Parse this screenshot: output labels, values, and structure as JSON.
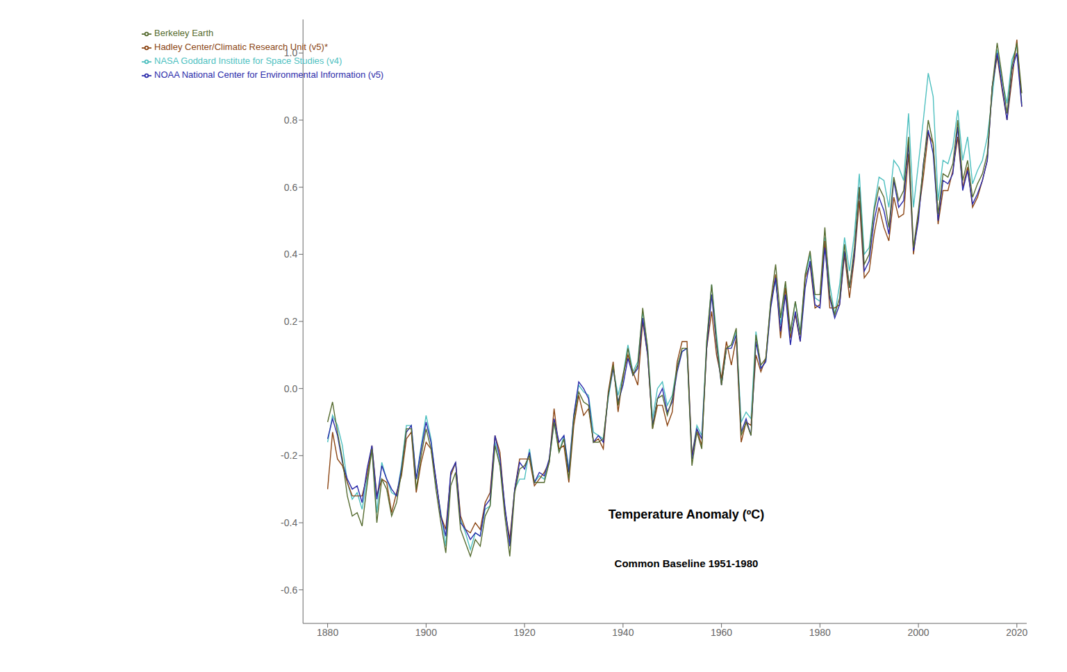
{
  "chart_data": {
    "type": "line",
    "title": "Temperature Anomaly (ºC)",
    "subtitle": "Common Baseline 1951-1980",
    "x": [
      1880,
      1881,
      1882,
      1883,
      1884,
      1885,
      1886,
      1887,
      1888,
      1889,
      1890,
      1891,
      1892,
      1893,
      1894,
      1895,
      1896,
      1897,
      1898,
      1899,
      1900,
      1901,
      1902,
      1903,
      1904,
      1905,
      1906,
      1907,
      1908,
      1909,
      1910,
      1911,
      1912,
      1913,
      1914,
      1915,
      1916,
      1917,
      1918,
      1919,
      1920,
      1921,
      1922,
      1923,
      1924,
      1925,
      1926,
      1927,
      1928,
      1929,
      1930,
      1931,
      1932,
      1933,
      1934,
      1935,
      1936,
      1937,
      1938,
      1939,
      1940,
      1941,
      1942,
      1943,
      1944,
      1945,
      1946,
      1947,
      1948,
      1949,
      1950,
      1951,
      1952,
      1953,
      1954,
      1955,
      1956,
      1957,
      1958,
      1959,
      1960,
      1961,
      1962,
      1963,
      1964,
      1965,
      1966,
      1967,
      1968,
      1969,
      1970,
      1971,
      1972,
      1973,
      1974,
      1975,
      1976,
      1977,
      1978,
      1979,
      1980,
      1981,
      1982,
      1983,
      1984,
      1985,
      1986,
      1987,
      1988,
      1989,
      1990,
      1991,
      1992,
      1993,
      1994,
      1995,
      1996,
      1997,
      1998,
      1999,
      2000,
      2001,
      2002,
      2003,
      2004,
      2005,
      2006,
      2007,
      2008,
      2009,
      2010,
      2011,
      2012,
      2013,
      2014,
      2015,
      2016,
      2017,
      2018,
      2019,
      2020,
      2021
    ],
    "series": [
      {
        "name": "NASA Goddard Institute for Space Studies (v4)",
        "color": "#4dbfbf",
        "values": [
          -0.16,
          -0.08,
          -0.11,
          -0.17,
          -0.28,
          -0.33,
          -0.31,
          -0.36,
          -0.27,
          -0.18,
          -0.37,
          -0.22,
          -0.27,
          -0.31,
          -0.32,
          -0.23,
          -0.11,
          -0.11,
          -0.27,
          -0.17,
          -0.08,
          -0.15,
          -0.28,
          -0.37,
          -0.47,
          -0.26,
          -0.22,
          -0.39,
          -0.43,
          -0.48,
          -0.43,
          -0.44,
          -0.36,
          -0.35,
          -0.16,
          -0.23,
          -0.36,
          -0.46,
          -0.3,
          -0.27,
          -0.27,
          -0.18,
          -0.28,
          -0.26,
          -0.27,
          -0.22,
          -0.1,
          -0.19,
          -0.14,
          -0.24,
          -0.08,
          0.01,
          -0.01,
          -0.02,
          -0.13,
          -0.14,
          -0.15,
          -0.03,
          0.06,
          -0.02,
          0.04,
          0.13,
          0.05,
          0.08,
          0.23,
          0.12,
          -0.09,
          0.0,
          0.02,
          -0.05,
          -0.02,
          0.07,
          0.11,
          0.12,
          -0.2,
          -0.11,
          -0.14,
          0.14,
          0.31,
          0.16,
          0.02,
          0.12,
          0.13,
          0.17,
          -0.1,
          -0.07,
          -0.09,
          0.17,
          0.06,
          0.08,
          0.26,
          0.32,
          0.19,
          0.31,
          0.16,
          0.26,
          0.17,
          0.33,
          0.4,
          0.27,
          0.26,
          0.45,
          0.31,
          0.22,
          0.31,
          0.45,
          0.35,
          0.46,
          0.64,
          0.4,
          0.42,
          0.54,
          0.63,
          0.62,
          0.54,
          0.68,
          0.66,
          0.62,
          0.82,
          0.54,
          0.67,
          0.8,
          0.94,
          0.87,
          0.56,
          0.68,
          0.67,
          0.72,
          0.83,
          0.68,
          0.75,
          0.61,
          0.65,
          0.68,
          0.75,
          0.87,
          1.01,
          0.92,
          0.85,
          0.98,
          1.02,
          0.85
        ]
      },
      {
        "name": "Hadley Center/Climatic Research Unit (v5)*",
        "color": "#8B4513",
        "values": [
          -0.3,
          -0.13,
          -0.21,
          -0.23,
          -0.28,
          -0.32,
          -0.32,
          -0.32,
          -0.26,
          -0.17,
          -0.32,
          -0.27,
          -0.28,
          -0.37,
          -0.31,
          -0.26,
          -0.15,
          -0.13,
          -0.31,
          -0.22,
          -0.16,
          -0.18,
          -0.27,
          -0.38,
          -0.42,
          -0.26,
          -0.22,
          -0.38,
          -0.42,
          -0.43,
          -0.4,
          -0.42,
          -0.34,
          -0.31,
          -0.14,
          -0.19,
          -0.36,
          -0.45,
          -0.3,
          -0.21,
          -0.21,
          -0.21,
          -0.29,
          -0.27,
          -0.25,
          -0.22,
          -0.06,
          -0.18,
          -0.17,
          -0.28,
          -0.11,
          -0.02,
          -0.08,
          -0.06,
          -0.16,
          -0.15,
          -0.18,
          -0.01,
          0.08,
          -0.07,
          0.04,
          0.1,
          0.05,
          0.01,
          0.2,
          0.1,
          -0.12,
          -0.05,
          -0.05,
          -0.11,
          -0.07,
          0.08,
          0.14,
          0.14,
          -0.2,
          -0.12,
          -0.17,
          0.12,
          0.23,
          0.1,
          0.03,
          0.14,
          0.07,
          0.15,
          -0.16,
          -0.1,
          -0.11,
          0.1,
          0.05,
          0.09,
          0.25,
          0.34,
          0.15,
          0.3,
          0.15,
          0.22,
          0.14,
          0.33,
          0.37,
          0.24,
          0.25,
          0.44,
          0.24,
          0.24,
          0.25,
          0.4,
          0.27,
          0.39,
          0.56,
          0.33,
          0.35,
          0.46,
          0.54,
          0.48,
          0.44,
          0.57,
          0.51,
          0.52,
          0.7,
          0.4,
          0.52,
          0.63,
          0.76,
          0.73,
          0.49,
          0.59,
          0.59,
          0.65,
          0.75,
          0.6,
          0.66,
          0.54,
          0.57,
          0.62,
          0.68,
          0.9,
          0.99,
          0.89,
          0.8,
          0.92,
          1.04,
          0.84
        ]
      },
      {
        "name": "NOAA National Center for Environmental Information (v5)",
        "color": "#2a2aaa",
        "values": [
          -0.15,
          -0.09,
          -0.14,
          -0.22,
          -0.27,
          -0.3,
          -0.29,
          -0.34,
          -0.24,
          -0.17,
          -0.33,
          -0.23,
          -0.27,
          -0.3,
          -0.32,
          -0.24,
          -0.13,
          -0.11,
          -0.27,
          -0.18,
          -0.1,
          -0.16,
          -0.27,
          -0.38,
          -0.44,
          -0.25,
          -0.22,
          -0.4,
          -0.42,
          -0.45,
          -0.43,
          -0.44,
          -0.35,
          -0.33,
          -0.14,
          -0.21,
          -0.35,
          -0.47,
          -0.3,
          -0.22,
          -0.24,
          -0.19,
          -0.28,
          -0.25,
          -0.26,
          -0.21,
          -0.09,
          -0.16,
          -0.14,
          -0.25,
          -0.08,
          0.02,
          0.0,
          -0.03,
          -0.16,
          -0.14,
          -0.16,
          -0.02,
          0.06,
          -0.04,
          0.01,
          0.09,
          0.04,
          0.06,
          0.21,
          0.1,
          -0.11,
          -0.03,
          0.0,
          -0.07,
          -0.04,
          0.05,
          0.11,
          0.12,
          -0.21,
          -0.12,
          -0.15,
          0.12,
          0.28,
          0.13,
          0.01,
          0.12,
          0.12,
          0.16,
          -0.13,
          -0.09,
          -0.14,
          0.14,
          0.06,
          0.08,
          0.24,
          0.33,
          0.17,
          0.28,
          0.13,
          0.23,
          0.14,
          0.3,
          0.38,
          0.25,
          0.24,
          0.42,
          0.27,
          0.21,
          0.25,
          0.41,
          0.3,
          0.4,
          0.6,
          0.35,
          0.38,
          0.5,
          0.57,
          0.53,
          0.46,
          0.62,
          0.54,
          0.56,
          0.73,
          0.41,
          0.5,
          0.67,
          0.77,
          0.7,
          0.5,
          0.62,
          0.61,
          0.64,
          0.78,
          0.59,
          0.65,
          0.55,
          0.58,
          0.62,
          0.68,
          0.9,
          1.0,
          0.9,
          0.8,
          0.95,
          1.0,
          0.84
        ]
      },
      {
        "name": "Berkeley Earth",
        "color": "#556B2F",
        "values": [
          -0.1,
          -0.04,
          -0.13,
          -0.21,
          -0.32,
          -0.38,
          -0.37,
          -0.41,
          -0.29,
          -0.18,
          -0.4,
          -0.27,
          -0.3,
          -0.38,
          -0.34,
          -0.25,
          -0.12,
          -0.12,
          -0.3,
          -0.2,
          -0.12,
          -0.18,
          -0.3,
          -0.4,
          -0.49,
          -0.29,
          -0.25,
          -0.42,
          -0.46,
          -0.5,
          -0.45,
          -0.47,
          -0.38,
          -0.35,
          -0.17,
          -0.23,
          -0.38,
          -0.5,
          -0.31,
          -0.24,
          -0.23,
          -0.2,
          -0.28,
          -0.28,
          -0.28,
          -0.22,
          -0.1,
          -0.19,
          -0.15,
          -0.27,
          -0.09,
          -0.01,
          -0.04,
          -0.05,
          -0.16,
          -0.16,
          -0.15,
          -0.02,
          0.07,
          -0.05,
          0.03,
          0.12,
          0.04,
          0.07,
          0.24,
          0.12,
          -0.12,
          -0.03,
          -0.02,
          -0.08,
          -0.03,
          0.06,
          0.12,
          0.12,
          -0.23,
          -0.13,
          -0.18,
          0.14,
          0.31,
          0.14,
          0.01,
          0.12,
          0.13,
          0.18,
          -0.14,
          -0.1,
          -0.14,
          0.16,
          0.07,
          0.09,
          0.26,
          0.37,
          0.21,
          0.32,
          0.17,
          0.26,
          0.16,
          0.34,
          0.41,
          0.28,
          0.28,
          0.48,
          0.28,
          0.22,
          0.27,
          0.43,
          0.3,
          0.42,
          0.6,
          0.37,
          0.4,
          0.53,
          0.6,
          0.57,
          0.48,
          0.63,
          0.56,
          0.59,
          0.75,
          0.42,
          0.53,
          0.66,
          0.8,
          0.73,
          0.52,
          0.64,
          0.63,
          0.67,
          0.8,
          0.62,
          0.68,
          0.57,
          0.61,
          0.64,
          0.7,
          0.9,
          1.03,
          0.93,
          0.82,
          0.96,
          1.03,
          0.88
        ]
      }
    ],
    "xlim": [
      1875,
      2022
    ],
    "ylim": [
      -0.7,
      1.1
    ],
    "xticks": [
      1880,
      1900,
      1920,
      1940,
      1960,
      1980,
      2000,
      2020
    ],
    "yticks": [
      -0.6,
      -0.4,
      -0.2,
      {
        "value": 0,
        "label": "0.0"
      },
      0.2,
      0.4,
      0.6,
      0.8,
      {
        "value": 1,
        "label": "1.0"
      }
    ],
    "grid": false,
    "legend": "upper left"
  }
}
